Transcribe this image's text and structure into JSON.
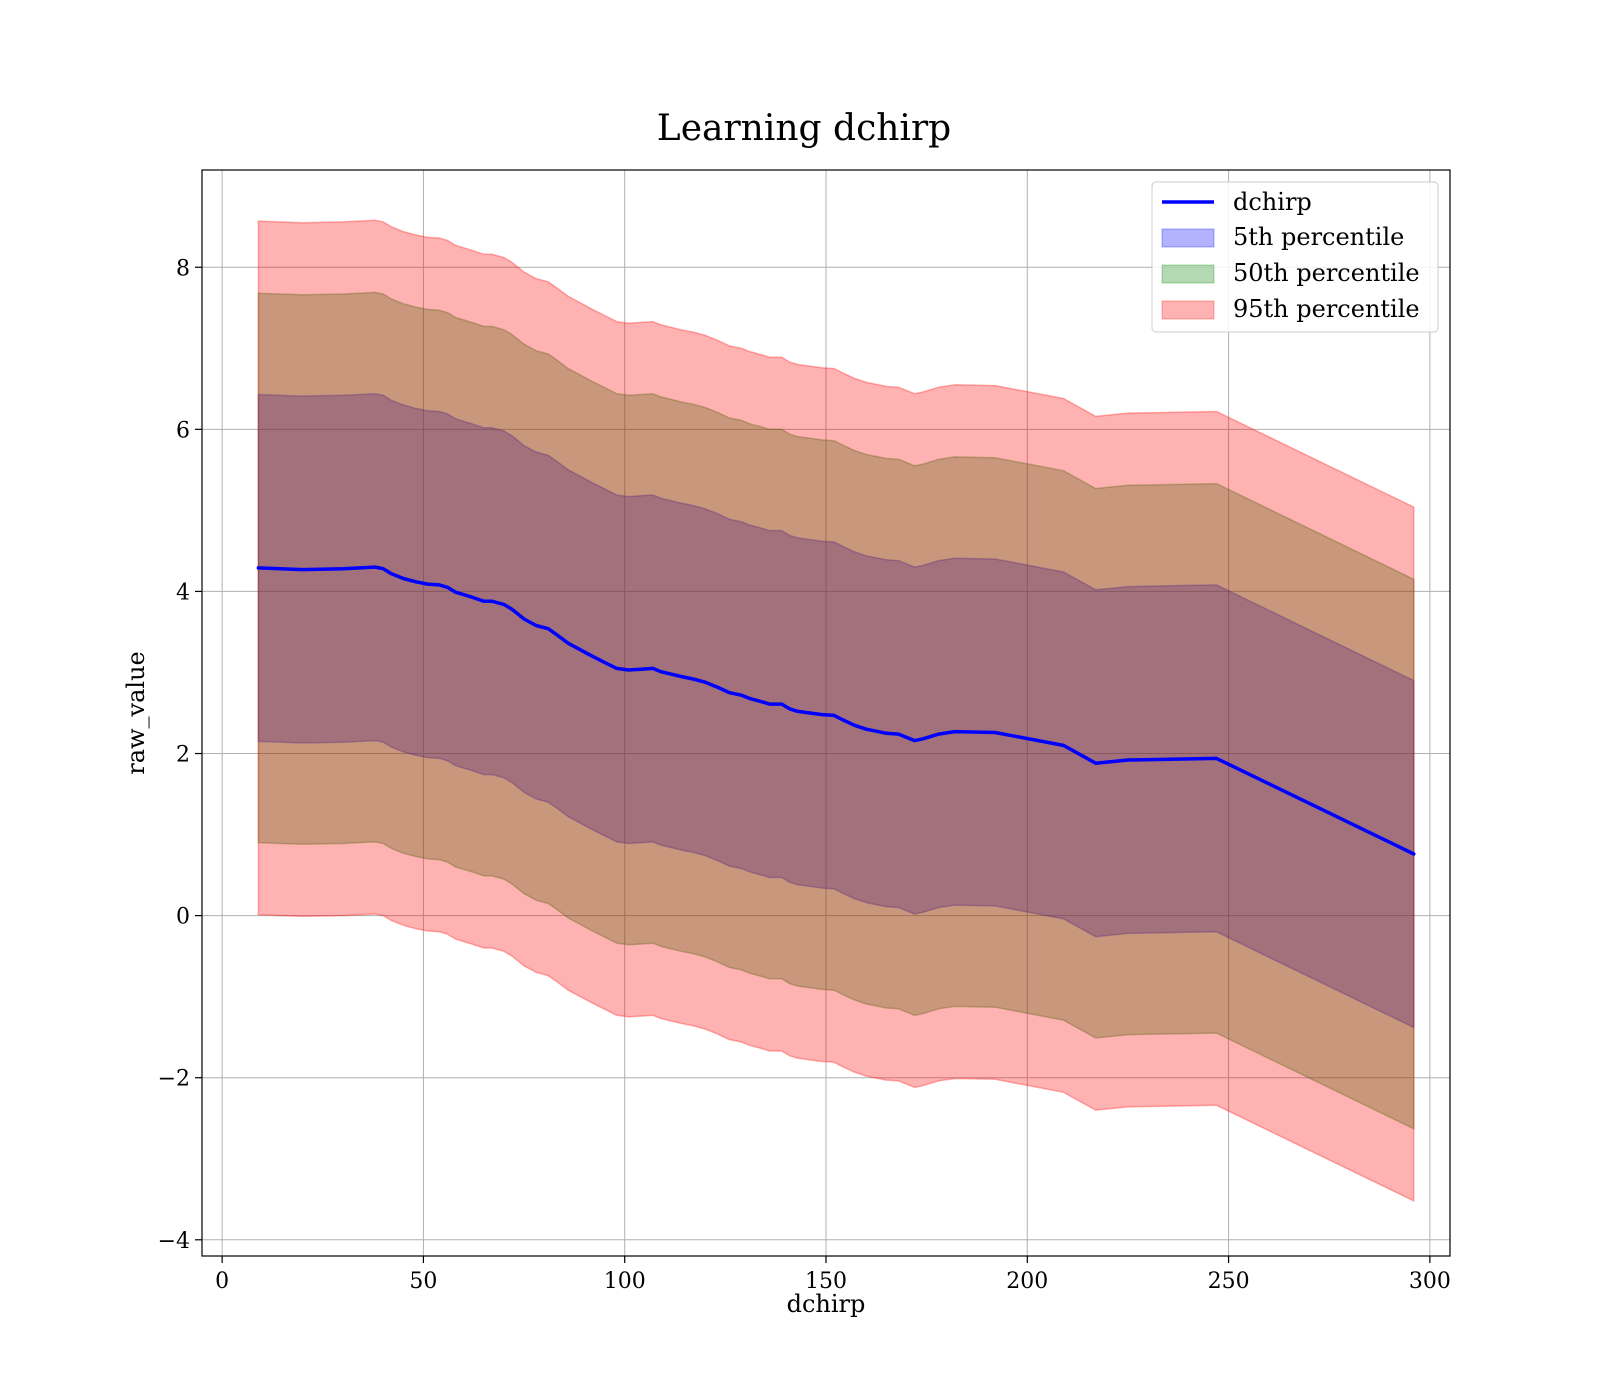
{
  "chart_data": {
    "type": "line",
    "title": "Learning dchirp",
    "xlabel": "dchirp",
    "ylabel": "raw_value",
    "xlim": [
      -5,
      305
    ],
    "ylim": [
      -4.2,
      9.2
    ],
    "x_ticks": [
      0,
      50,
      100,
      150,
      200,
      250,
      300
    ],
    "y_ticks": [
      -4,
      -2,
      0,
      2,
      4,
      6,
      8
    ],
    "x_tick_labels": [
      "0",
      "50",
      "100",
      "150",
      "200",
      "250",
      "300"
    ],
    "y_tick_labels": [
      "−4",
      "−2",
      "0",
      "2",
      "4",
      "6",
      "8"
    ],
    "grid": true,
    "legend_position": "top-right",
    "colors": {
      "line": "#0000ff",
      "band_5th": "#0000ff",
      "band_50th": "#008000",
      "band_95th": "#ff0000"
    },
    "x": [
      9,
      20,
      30,
      38,
      40,
      42,
      45,
      48,
      51,
      54,
      56,
      58,
      62,
      65,
      67,
      70,
      72,
      75,
      78,
      81,
      83,
      86,
      89,
      92,
      96,
      98,
      101,
      104,
      107,
      109,
      114,
      117,
      120,
      123,
      126,
      129,
      131,
      134,
      136,
      139,
      141,
      143,
      146,
      149,
      152,
      154,
      157,
      160,
      165,
      168,
      172,
      174,
      178,
      182,
      192,
      209,
      217,
      225,
      247,
      296
    ],
    "series": [
      {
        "name": "dchirp",
        "values": [
          4.29,
          4.27,
          4.28,
          4.3,
          4.28,
          4.22,
          4.16,
          4.12,
          4.09,
          4.08,
          4.05,
          3.99,
          3.93,
          3.88,
          3.88,
          3.84,
          3.78,
          3.66,
          3.58,
          3.54,
          3.47,
          3.36,
          3.28,
          3.2,
          3.1,
          3.05,
          3.03,
          3.04,
          3.05,
          3.01,
          2.95,
          2.92,
          2.88,
          2.82,
          2.75,
          2.72,
          2.68,
          2.64,
          2.61,
          2.61,
          2.55,
          2.52,
          2.5,
          2.48,
          2.47,
          2.42,
          2.35,
          2.3,
          2.25,
          2.24,
          2.16,
          2.18,
          2.24,
          2.27,
          2.26,
          2.1,
          1.88,
          1.92,
          1.94,
          0.76
        ]
      },
      {
        "name": "5th percentile",
        "lower": [
          2.15,
          2.13,
          2.14,
          2.16,
          2.14,
          2.08,
          2.02,
          1.98,
          1.95,
          1.94,
          1.91,
          1.85,
          1.79,
          1.74,
          1.74,
          1.7,
          1.64,
          1.52,
          1.44,
          1.4,
          1.33,
          1.22,
          1.14,
          1.06,
          0.96,
          0.91,
          0.89,
          0.9,
          0.91,
          0.87,
          0.81,
          0.78,
          0.74,
          0.68,
          0.61,
          0.58,
          0.54,
          0.5,
          0.47,
          0.47,
          0.41,
          0.38,
          0.36,
          0.34,
          0.33,
          0.28,
          0.21,
          0.16,
          0.11,
          0.1,
          0.02,
          0.04,
          0.1,
          0.13,
          0.12,
          -0.04,
          -0.26,
          -0.22,
          -0.2,
          -1.38
        ],
        "upper": [
          6.43,
          6.41,
          6.42,
          6.44,
          6.42,
          6.36,
          6.3,
          6.26,
          6.23,
          6.22,
          6.19,
          6.13,
          6.07,
          6.02,
          6.02,
          5.98,
          5.92,
          5.8,
          5.72,
          5.68,
          5.61,
          5.5,
          5.42,
          5.34,
          5.24,
          5.19,
          5.17,
          5.18,
          5.19,
          5.15,
          5.09,
          5.06,
          5.02,
          4.96,
          4.89,
          4.86,
          4.82,
          4.78,
          4.75,
          4.75,
          4.69,
          4.66,
          4.64,
          4.62,
          4.61,
          4.56,
          4.49,
          4.44,
          4.39,
          4.38,
          4.3,
          4.32,
          4.38,
          4.41,
          4.4,
          4.24,
          4.02,
          4.06,
          4.08,
          2.9
        ]
      },
      {
        "name": "50th percentile",
        "lower": [
          0.9,
          0.88,
          0.89,
          0.91,
          0.89,
          0.83,
          0.77,
          0.73,
          0.7,
          0.69,
          0.66,
          0.6,
          0.54,
          0.49,
          0.49,
          0.45,
          0.39,
          0.27,
          0.19,
          0.15,
          0.08,
          -0.03,
          -0.11,
          -0.19,
          -0.29,
          -0.34,
          -0.36,
          -0.35,
          -0.34,
          -0.38,
          -0.44,
          -0.47,
          -0.51,
          -0.57,
          -0.64,
          -0.67,
          -0.71,
          -0.75,
          -0.78,
          -0.78,
          -0.84,
          -0.87,
          -0.89,
          -0.91,
          -0.92,
          -0.97,
          -1.04,
          -1.09,
          -1.14,
          -1.15,
          -1.23,
          -1.21,
          -1.15,
          -1.12,
          -1.13,
          -1.29,
          -1.51,
          -1.47,
          -1.45,
          -2.63
        ],
        "upper": [
          7.68,
          7.66,
          7.67,
          7.69,
          7.67,
          7.61,
          7.55,
          7.51,
          7.48,
          7.47,
          7.44,
          7.38,
          7.32,
          7.27,
          7.27,
          7.23,
          7.17,
          7.05,
          6.97,
          6.93,
          6.86,
          6.75,
          6.67,
          6.59,
          6.49,
          6.44,
          6.42,
          6.43,
          6.44,
          6.4,
          6.34,
          6.31,
          6.27,
          6.21,
          6.14,
          6.11,
          6.07,
          6.03,
          6.0,
          6.0,
          5.94,
          5.91,
          5.89,
          5.87,
          5.86,
          5.81,
          5.74,
          5.69,
          5.64,
          5.63,
          5.55,
          5.57,
          5.63,
          5.66,
          5.65,
          5.49,
          5.27,
          5.31,
          5.33,
          4.15
        ]
      },
      {
        "name": "95th percentile",
        "lower": [
          0.01,
          -0.01,
          0.0,
          0.02,
          0.0,
          -0.06,
          -0.12,
          -0.16,
          -0.19,
          -0.2,
          -0.23,
          -0.29,
          -0.35,
          -0.4,
          -0.4,
          -0.44,
          -0.5,
          -0.62,
          -0.7,
          -0.74,
          -0.81,
          -0.92,
          -1.0,
          -1.08,
          -1.18,
          -1.23,
          -1.25,
          -1.24,
          -1.23,
          -1.27,
          -1.33,
          -1.36,
          -1.4,
          -1.46,
          -1.53,
          -1.56,
          -1.6,
          -1.64,
          -1.67,
          -1.67,
          -1.73,
          -1.76,
          -1.78,
          -1.8,
          -1.81,
          -1.86,
          -1.93,
          -1.98,
          -2.03,
          -2.04,
          -2.12,
          -2.1,
          -2.04,
          -2.01,
          -2.02,
          -2.18,
          -2.4,
          -2.36,
          -2.34,
          -3.52
        ],
        "upper": [
          8.57,
          8.55,
          8.56,
          8.58,
          8.56,
          8.5,
          8.44,
          8.4,
          8.37,
          8.36,
          8.33,
          8.27,
          8.21,
          8.16,
          8.16,
          8.12,
          8.06,
          7.94,
          7.86,
          7.82,
          7.75,
          7.64,
          7.56,
          7.48,
          7.38,
          7.33,
          7.31,
          7.32,
          7.33,
          7.29,
          7.23,
          7.2,
          7.16,
          7.1,
          7.03,
          7.0,
          6.96,
          6.92,
          6.89,
          6.89,
          6.83,
          6.8,
          6.78,
          6.76,
          6.75,
          6.7,
          6.63,
          6.58,
          6.53,
          6.52,
          6.44,
          6.46,
          6.52,
          6.55,
          6.54,
          6.38,
          6.16,
          6.2,
          6.22,
          5.04
        ]
      }
    ],
    "legend": [
      "dchirp",
      "5th percentile",
      "50th percentile",
      "95th percentile"
    ]
  }
}
